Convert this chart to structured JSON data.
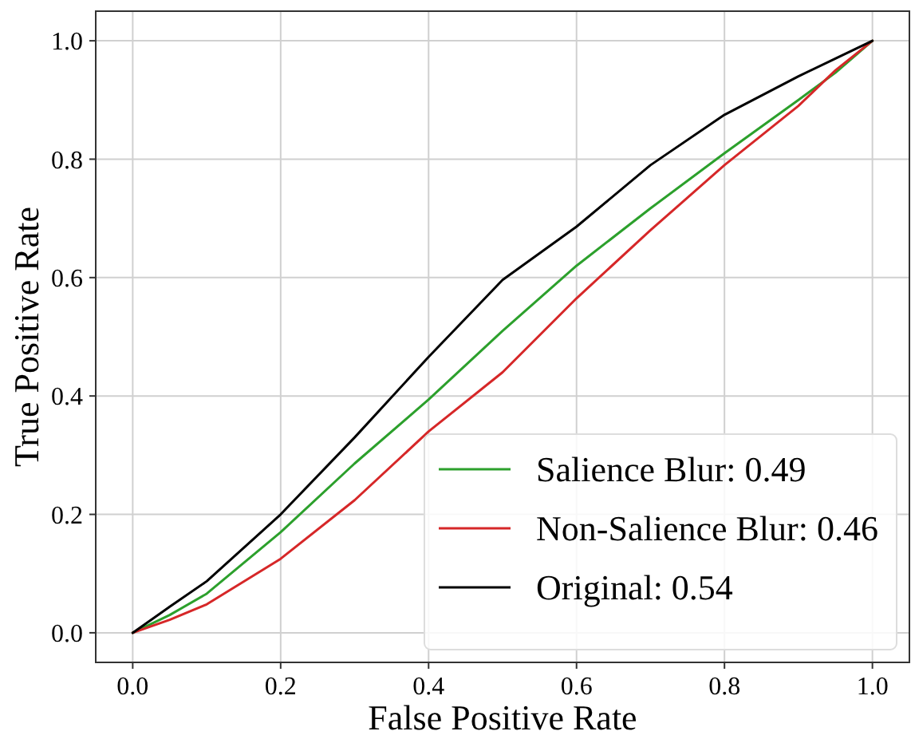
{
  "chart_data": {
    "type": "line",
    "xlabel": "False Positive Rate",
    "ylabel": "True Positive Rate",
    "xlim": [
      -0.05,
      1.05
    ],
    "ylim": [
      -0.05,
      1.05
    ],
    "xticks": [
      {
        "value": 0,
        "label": "0.0"
      },
      0.2,
      0.4,
      0.6,
      0.8,
      {
        "value": 1,
        "label": "1.0"
      }
    ],
    "yticks": [
      {
        "value": 0,
        "label": "0.0"
      },
      0.2,
      0.4,
      0.6,
      0.8,
      {
        "value": 1,
        "label": "1.0"
      }
    ],
    "grid": true,
    "legend": "bottom right",
    "x": [
      0,
      0.05,
      0.1,
      0.2,
      0.3,
      0.4,
      0.5,
      0.6,
      0.7,
      0.8,
      0.9,
      0.95,
      1
    ],
    "series": [
      {
        "name": "Salience Blur: 0.49",
        "color": "#2ca02c",
        "values": [
          0,
          0.03,
          0.066,
          0.17,
          0.286,
          0.394,
          0.51,
          0.62,
          0.717,
          0.81,
          0.9,
          0.946,
          1
        ]
      },
      {
        "name": "Non-Salience Blur: 0.46",
        "color": "#d62728",
        "values": [
          0,
          0.022,
          0.048,
          0.125,
          0.224,
          0.34,
          0.44,
          0.565,
          0.68,
          0.79,
          0.89,
          0.95,
          1
        ]
      },
      {
        "name": "Original: 0.54",
        "color": "#000000",
        "values": [
          0,
          0.044,
          0.087,
          0.2,
          0.33,
          0.466,
          0.596,
          0.686,
          0.79,
          0.875,
          0.94,
          0.97,
          1
        ]
      }
    ]
  }
}
